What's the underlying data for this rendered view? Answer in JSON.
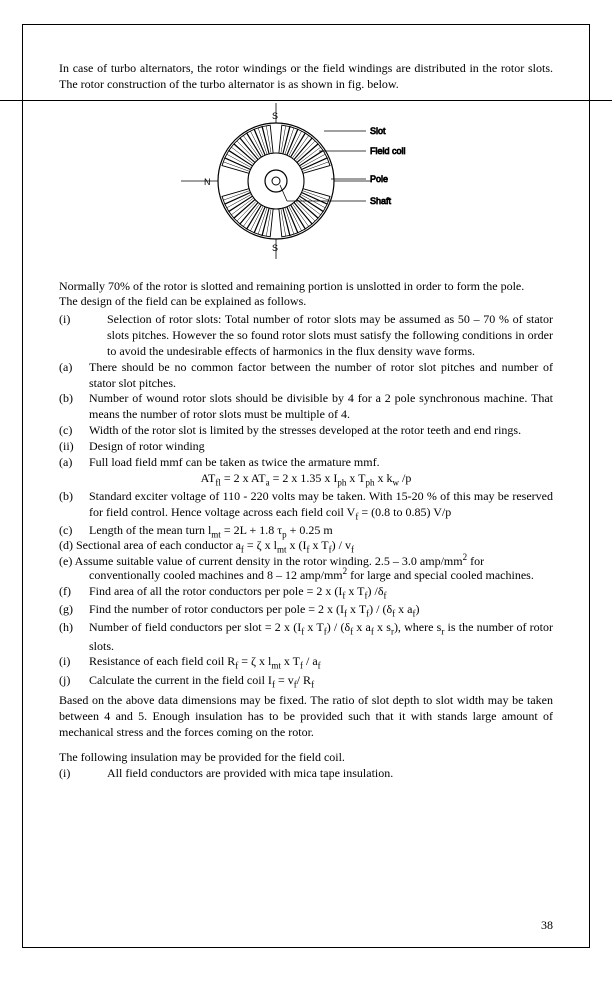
{
  "page_number": "38",
  "intro_para": "In case of turbo alternators, the rotor windings or the field windings are distributed in the rotor slots. The rotor construction of the turbo alternator is as shown in fig. below.",
  "figure": {
    "labels": {
      "slot": "Slot",
      "field": "Field coil",
      "pole": "Pole",
      "shaft": "Shaft"
    },
    "poles": {
      "n": "N",
      "s": "S"
    }
  },
  "after_fig_l1": "Normally 70% of the rotor is slotted and remaining portion is unslotted in order to form the pole.",
  "after_fig_l2": "The design of the field can be explained as follows.",
  "rom_i": {
    "m": "(i)",
    "t": "Selection of rotor slots: Total number of rotor slots may be assumed as 50 – 70 % of stator slots pitches. However the so found rotor slots must satisfy the following conditions in order to avoid the undesirable effects of harmonics in the flux density wave forms."
  },
  "a": {
    "m": "(a)",
    "t": "There should be no common factor between the number of rotor slot pitches and number of stator slot pitches."
  },
  "b": {
    "m": "(b)",
    "t": "Number of wound rotor slots should be divisible by 4 for a 2 pole synchronous machine. That means the number of rotor slots must be multiple of 4."
  },
  "c": {
    "m": "(c)",
    "t": "Width of the rotor slot is limited by the stresses developed at the rotor teeth and end rings."
  },
  "rom_ii": {
    "m": "(ii)",
    "t": "Design of rotor winding"
  },
  "a2": {
    "m": "(a)",
    "t": "Full load field mmf can be taken as twice the armature mmf."
  },
  "formula_html": "AT<span class='sub'>fl</span> = 2 x AT<span class='sub'>a</span> = 2 x 1.35 x I<span class='sub'>ph</span> x T<span class='sub'>ph</span> x k<span class='sub'>w</span> /p",
  "b2": {
    "m": "(b)",
    "t_html": "Standard exciter voltage of 110 - 220 volts may be taken. With 15-20 % of this may be reserved for field control. Hence voltage across each field coil V<span class='sub'>f</span> = (0.8 to 0.85) V/p"
  },
  "c2": {
    "m": "(c)",
    "t_html": "Length of the mean turn l<span class='sub'>mt</span> = 2L + 1.8 τ<span class='sub'>p</span> + 0.25 m"
  },
  "de_overlap_html": "(d) Sectional area of each conductor a<span class='sub'>f</span> = ζ x l<span class='sub'>mt</span> x (I<span class='sub'>f</span> x T<span class='sub'>f</span>) / v<span class='sub'>f</span><br>(e) Assume suitable value of current density in the rotor winding. 2.5 – 3.0 amp/mm<span class='sup'>2</span> for",
  "e_cont_html": "conventionally cooled machines and 8 – 12 amp/mm<span class='sup'>2</span> for large and special cooled machines.",
  "f": {
    "m": "(f)",
    "t_html": "Find area of all the rotor conductors per pole = 2 x (I<span class='sub'>f</span> x T<span class='sub'>f</span>) /δ<span class='sub'>f</span>"
  },
  "g": {
    "m": "(g)",
    "t_html": "Find the number of rotor conductors per pole = 2 x (I<span class='sub'>f</span> x T<span class='sub'>f</span>) / (δ<span class='sub'>f</span> x a<span class='sub'>f</span>)"
  },
  "h": {
    "m": "(h)",
    "t_html": "Number of field conductors per slot = 2 x (I<span class='sub'>f</span> x T<span class='sub'>f</span>) / (δ<span class='sub'>f</span> x a<span class='sub'>f</span> x s<span class='sub'>r</span>), where s<span class='sub'>r</span> is the number of rotor slots."
  },
  "i2": {
    "m": "(i)",
    "t_html": "Resistance of each field coil R<span class='sub'>f</span> = ζ x l<span class='sub'>mt</span> x T<span class='sub'>f</span> / a<span class='sub'>f</span>"
  },
  "j": {
    "m": "(j)",
    "t_html": "Calculate the current in the field coil I<span class='sub'>f</span> = v<span class='sub'>f</span>/ R<span class='sub'>f</span>"
  },
  "based_para": "Based on the above data dimensions may be fixed. The ratio of slot depth to slot width may be taken between 4 and 5. Enough insulation has to be provided such that it with stands large amount of mechanical stress and the forces coming on the rotor.",
  "insul_intro": "The following insulation may be provided for the field coil.",
  "insul_i": {
    "m": "(i)",
    "t": "All field conductors are provided with mica tape insulation."
  }
}
